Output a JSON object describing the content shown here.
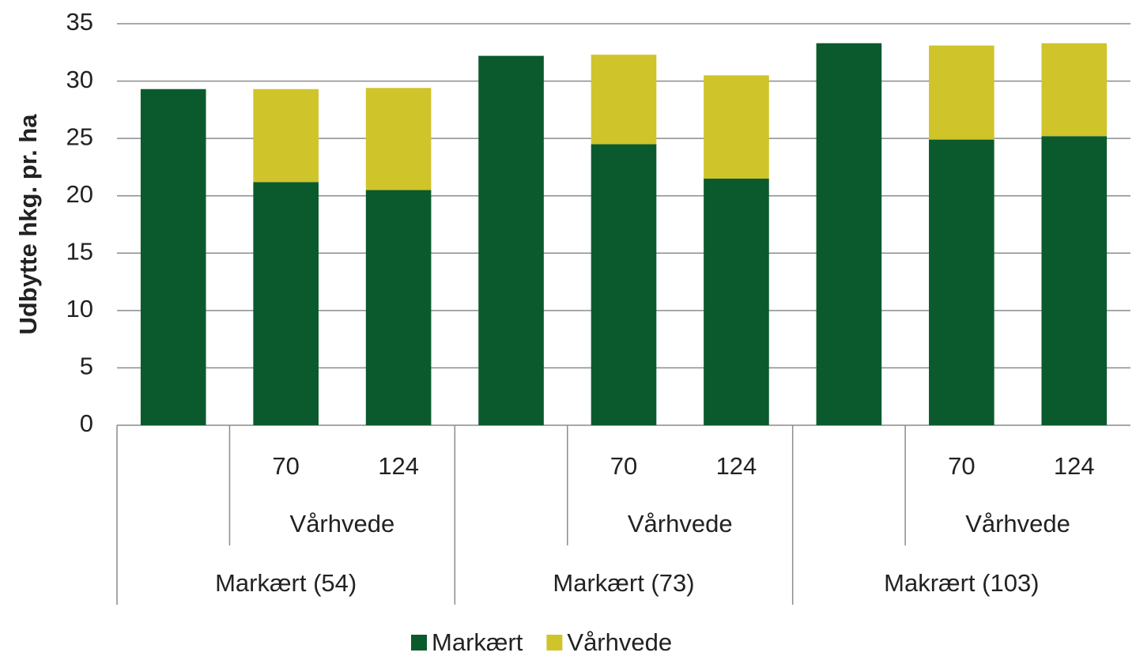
{
  "chart_data": {
    "type": "stacked_bar",
    "y_axis_label": "Udbytte hkg. pr. ha",
    "categories": [
      null,
      "70",
      "124",
      null,
      "70",
      "124",
      null,
      "70",
      "124"
    ],
    "groups": [
      {
        "name": "Markært (54)",
        "subgroup": "Vårhvede"
      },
      {
        "name": "Markært (73)",
        "subgroup": "Vårhvede"
      },
      {
        "name": "Makrært (103)",
        "subgroup": "Vårhvede"
      }
    ],
    "series": [
      {
        "name": "Markært",
        "color": "#0b5a2e",
        "values": [
          29.3,
          21.2,
          20.5,
          32.2,
          24.5,
          21.5,
          33.3,
          24.9,
          25.2
        ]
      },
      {
        "name": "Vårhvede",
        "color": "#cfc42a",
        "values": [
          null,
          8.1,
          8.9,
          null,
          7.8,
          9.0,
          null,
          8.2,
          8.1
        ]
      }
    ],
    "ylim": [
      0,
      35
    ],
    "yticks": [
      0,
      5,
      10,
      15,
      20,
      25,
      30,
      35
    ],
    "grid": true,
    "legend": "bottom"
  }
}
